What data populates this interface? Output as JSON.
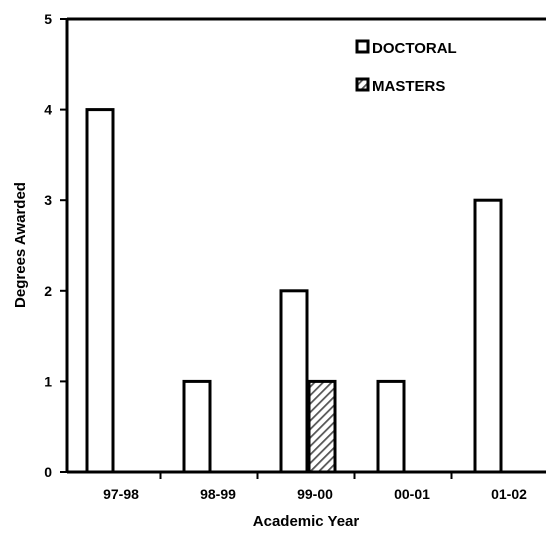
{
  "chart_data": {
    "type": "bar",
    "title": "",
    "xlabel": "Academic Year",
    "ylabel": "Degrees Awarded",
    "categories": [
      "97-98",
      "98-99",
      "99-00",
      "00-01",
      "01-02"
    ],
    "ylim": [
      0,
      5
    ],
    "yticks": [
      "0",
      "1",
      "2",
      "3",
      "4",
      "5"
    ],
    "grid": false,
    "legend_position": "top-right",
    "series": [
      {
        "name": "DOCTORAL",
        "values": [
          4,
          1,
          2,
          1,
          3
        ],
        "fill": "#ffffff",
        "pattern": "solid"
      },
      {
        "name": "MASTERS",
        "values": [
          0,
          0,
          1,
          0,
          0
        ],
        "fill": "#ffffff",
        "pattern": "diagonal-hatch"
      }
    ]
  }
}
